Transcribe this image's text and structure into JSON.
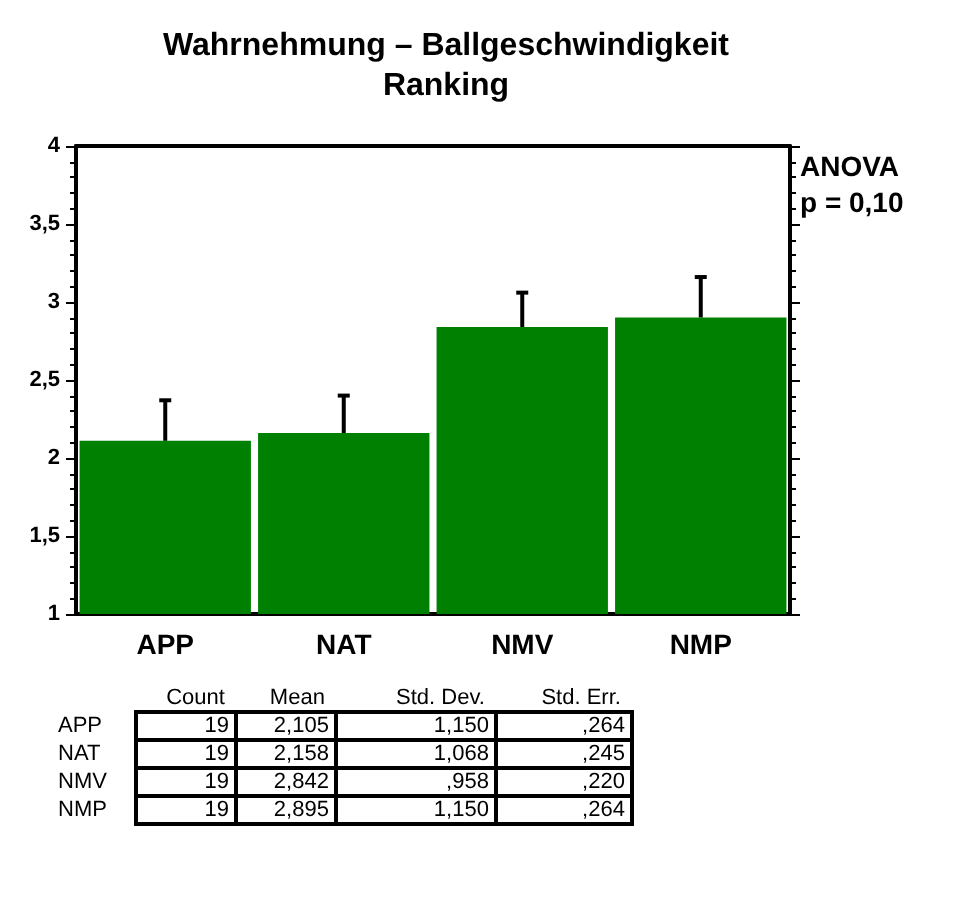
{
  "chart_data": {
    "type": "bar",
    "title": "Wahrnehmung – Ballgeschwindigkeit\nRanking",
    "categories": [
      "APP",
      "NAT",
      "NMV",
      "NMP"
    ],
    "values": [
      2.11,
      2.16,
      2.84,
      2.9
    ],
    "errors": [
      [
        2.11,
        2.37
      ],
      [
        2.16,
        2.4
      ],
      [
        2.84,
        3.06
      ],
      [
        2.9,
        3.16
      ]
    ],
    "color": "#008000",
    "ylim": [
      1,
      4
    ],
    "yticks": [
      1,
      {
        "value": 1.5,
        "label": "1,5"
      },
      2,
      {
        "value": 2.5,
        "label": "2,5"
      },
      3,
      {
        "value": 3.5,
        "label": "3,5"
      },
      4
    ],
    "grid": false,
    "annotations": [
      "ANOVA\np = 0,10",
      "Count",
      "Mean",
      "Std. Dev.",
      "Std. Err.",
      "19",
      "2,105",
      "1,150",
      ",264",
      "19",
      "2,158",
      "1,068",
      ",245",
      "19",
      "2,842",
      ",958",
      ",220",
      "19",
      "2,895",
      "1,150",
      ",264"
    ]
  }
}
